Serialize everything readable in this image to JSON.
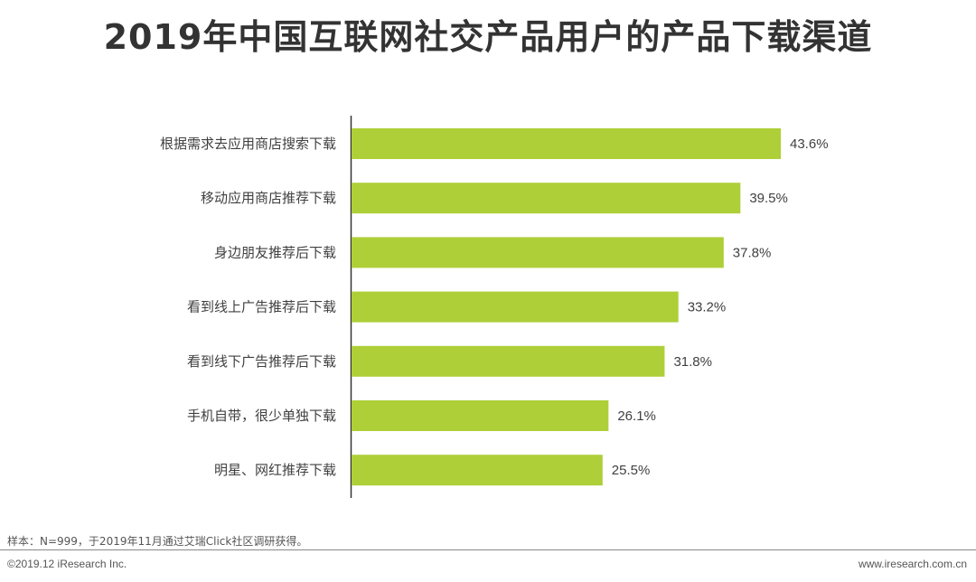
{
  "header": {
    "title": "2019年中国互联网社交产品用户的产品下载渠道"
  },
  "chart_data": {
    "type": "bar",
    "orientation": "horizontal",
    "categories": [
      "根据需求去应用商店搜索下载",
      "移动应用商店推荐下载",
      "身边朋友推荐后下载",
      "看到线上广告推荐后下载",
      "看到线下广告推荐后下载",
      "手机自带，很少单独下载",
      "明星、网红推荐下载"
    ],
    "values": [
      43.6,
      39.5,
      37.8,
      33.2,
      31.8,
      26.1,
      25.5
    ],
    "value_labels": [
      "43.6%",
      "39.5%",
      "37.8%",
      "33.2%",
      "31.8%",
      "26.1%",
      "25.5%"
    ],
    "unit": "%",
    "bar_color": "#AECF38",
    "grid": false
  },
  "footer": {
    "note": "样本：N=999，于2019年11月通过艾瑞Click社区调研获得。",
    "copyright": "©2019.12 iResearch Inc.",
    "site": "www.iresearch.com.cn"
  }
}
